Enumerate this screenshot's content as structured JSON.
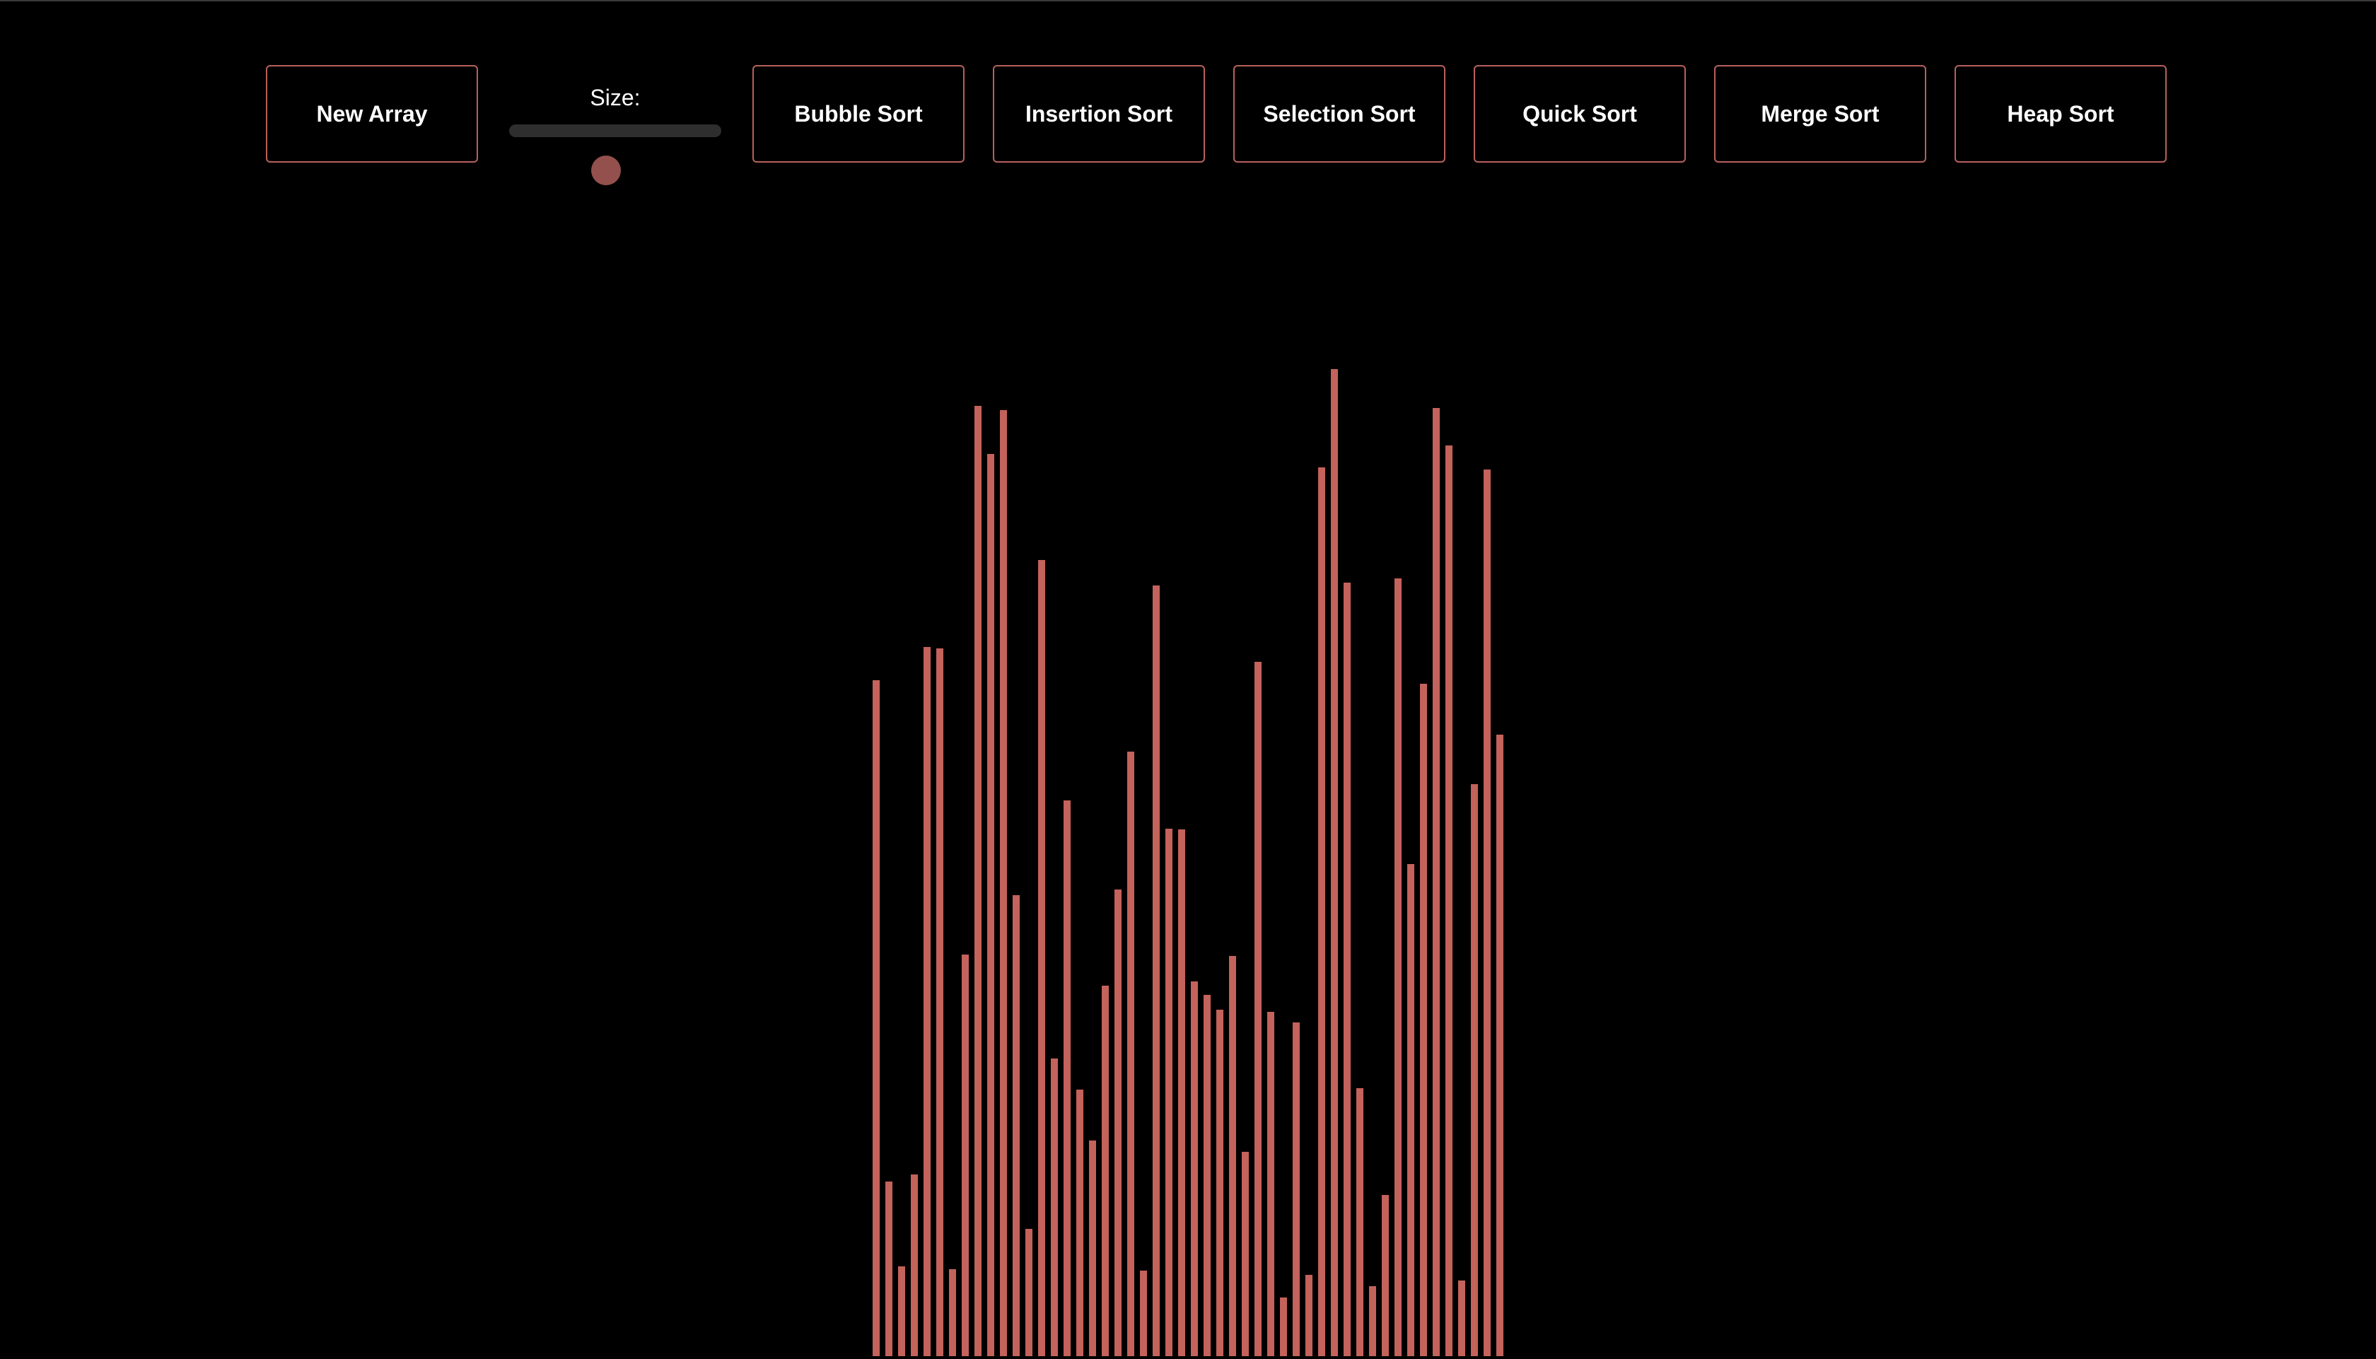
{
  "toolbar": {
    "new_array_label": "New Array",
    "size_label": "Size:",
    "size_fraction": 0.45,
    "sort_buttons": [
      {
        "name": "bubble-sort-button",
        "label": "Bubble Sort"
      },
      {
        "name": "insertion-sort-button",
        "label": "Insertion Sort"
      },
      {
        "name": "selection-sort-button",
        "label": "Selection Sort"
      },
      {
        "name": "quick-sort-button",
        "label": "Quick Sort"
      },
      {
        "name": "merge-sort-button",
        "label": "Merge Sort"
      },
      {
        "name": "heap-sort-button",
        "label": "Heap Sort"
      }
    ]
  },
  "colors": {
    "bar": "#c4625c",
    "button_border": "#b8615c",
    "slider_thumb": "#93504c",
    "background": "#000000"
  },
  "array": {
    "values": [
      956,
      247,
      127,
      257,
      1003,
      1001,
      123,
      568,
      1344,
      1276,
      1338,
      652,
      180,
      1126,
      421,
      786,
      377,
      305,
      524,
      660,
      855,
      121,
      1090,
      746,
      745,
      530,
      511,
      490,
      566,
      289,
      982,
      487,
      83,
      472,
      115,
      1257,
      1396,
      1094,
      379,
      99,
      228,
      1100,
      696,
      951,
      1341,
      1288,
      107,
      809,
      1254,
      879
    ]
  }
}
